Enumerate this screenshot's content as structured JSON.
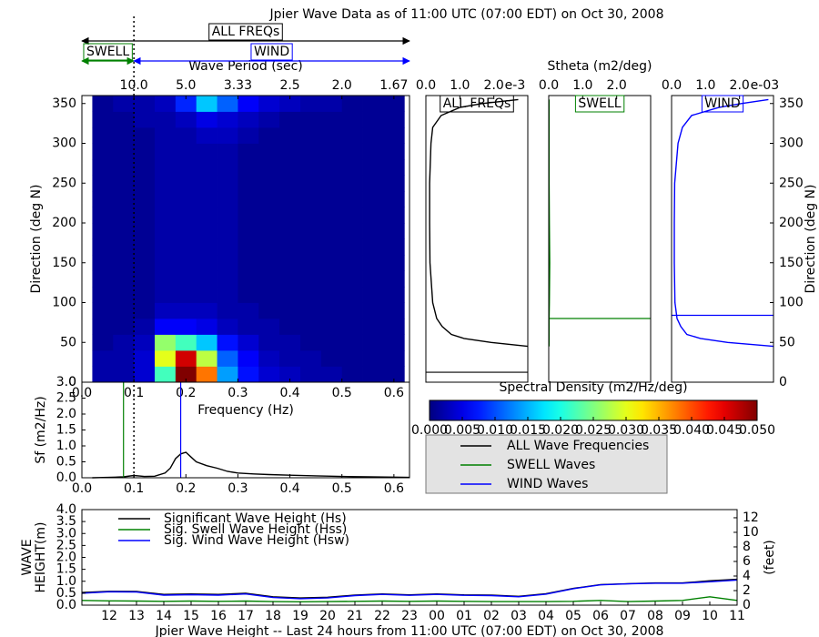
{
  "chart_data": [
    {
      "type": "heatmap",
      "title": "Jpier Wave Data as of 11:00 UTC (07:00 EDT) on Oct 30, 2008",
      "xlabel": "Frequency (Hz)",
      "ylabel": "Direction (deg N)",
      "x2label": "Wave Period (sec)",
      "x_edges": [
        0.02,
        0.06,
        0.1,
        0.14,
        0.18,
        0.22,
        0.26,
        0.3,
        0.34,
        0.38,
        0.42,
        0.46,
        0.5,
        0.54,
        0.58,
        0.62
      ],
      "y_edges": [
        0,
        20,
        40,
        60,
        80,
        100,
        120,
        140,
        160,
        180,
        200,
        220,
        240,
        260,
        280,
        300,
        320,
        340,
        360
      ],
      "values": [
        [
          0.002,
          0.002,
          0.004,
          0.022,
          0.05,
          0.038,
          0.014,
          0.007,
          0.004,
          0.003,
          0.002,
          0.002,
          0.001,
          0.001,
          0.001
        ],
        [
          0.002,
          0.002,
          0.004,
          0.03,
          0.046,
          0.028,
          0.011,
          0.006,
          0.003,
          0.002,
          0.002,
          0.001,
          0.001,
          0.001,
          0.001
        ],
        [
          0.001,
          0.002,
          0.003,
          0.026,
          0.022,
          0.016,
          0.007,
          0.004,
          0.002,
          0.002,
          0.001,
          0.001,
          0.001,
          0.001,
          0.001
        ],
        [
          0.001,
          0.001,
          0.002,
          0.006,
          0.006,
          0.005,
          0.003,
          0.002,
          0.002,
          0.001,
          0.001,
          0.001,
          0.001,
          0.001,
          0.001
        ],
        [
          0.001,
          0.001,
          0.001,
          0.003,
          0.003,
          0.003,
          0.002,
          0.002,
          0.001,
          0.001,
          0.001,
          0.001,
          0.001,
          0.001,
          0.001
        ],
        [
          0.001,
          0.001,
          0.001,
          0.002,
          0.002,
          0.002,
          0.002,
          0.001,
          0.001,
          0.001,
          0.001,
          0.001,
          0.001,
          0.001,
          0.001
        ],
        [
          0.001,
          0.001,
          0.001,
          0.002,
          0.002,
          0.002,
          0.002,
          0.001,
          0.001,
          0.001,
          0.001,
          0.001,
          0.001,
          0.001,
          0.001
        ],
        [
          0.001,
          0.001,
          0.001,
          0.002,
          0.002,
          0.002,
          0.002,
          0.001,
          0.001,
          0.001,
          0.001,
          0.001,
          0.001,
          0.001,
          0.001
        ],
        [
          0.001,
          0.001,
          0.001,
          0.002,
          0.002,
          0.002,
          0.002,
          0.001,
          0.001,
          0.001,
          0.001,
          0.001,
          0.001,
          0.001,
          0.001
        ],
        [
          0.001,
          0.001,
          0.001,
          0.002,
          0.002,
          0.002,
          0.002,
          0.001,
          0.001,
          0.001,
          0.001,
          0.001,
          0.001,
          0.001,
          0.001
        ],
        [
          0.001,
          0.001,
          0.001,
          0.002,
          0.002,
          0.002,
          0.002,
          0.001,
          0.001,
          0.001,
          0.001,
          0.001,
          0.001,
          0.001,
          0.001
        ],
        [
          0.001,
          0.001,
          0.001,
          0.002,
          0.002,
          0.002,
          0.002,
          0.001,
          0.001,
          0.001,
          0.001,
          0.001,
          0.001,
          0.001,
          0.001
        ],
        [
          0.001,
          0.001,
          0.001,
          0.002,
          0.002,
          0.002,
          0.002,
          0.001,
          0.001,
          0.001,
          0.001,
          0.001,
          0.001,
          0.001,
          0.001
        ],
        [
          0.001,
          0.001,
          0.001,
          0.002,
          0.002,
          0.002,
          0.002,
          0.001,
          0.001,
          0.001,
          0.001,
          0.001,
          0.001,
          0.001,
          0.001
        ],
        [
          0.001,
          0.001,
          0.001,
          0.002,
          0.002,
          0.002,
          0.002,
          0.001,
          0.001,
          0.001,
          0.001,
          0.001,
          0.001,
          0.001,
          0.001
        ],
        [
          0.001,
          0.001,
          0.001,
          0.002,
          0.002,
          0.003,
          0.003,
          0.002,
          0.001,
          0.001,
          0.001,
          0.001,
          0.001,
          0.001,
          0.001
        ],
        [
          0.001,
          0.001,
          0.002,
          0.002,
          0.003,
          0.005,
          0.004,
          0.003,
          0.002,
          0.001,
          0.001,
          0.001,
          0.001,
          0.001,
          0.001
        ],
        [
          0.001,
          0.002,
          0.002,
          0.003,
          0.008,
          0.016,
          0.011,
          0.006,
          0.004,
          0.003,
          0.002,
          0.002,
          0.001,
          0.001,
          0.001
        ]
      ],
      "xlim": [
        0,
        0.63
      ],
      "ylim": [
        0,
        360
      ],
      "xticks": [
        {
          "value": 0,
          "label": "0.0"
        },
        {
          "value": 0.1,
          "label": "0.1"
        },
        {
          "value": 0.2,
          "label": "0.2"
        },
        {
          "value": 0.3,
          "label": "0.3"
        },
        {
          "value": 0.4,
          "label": "0.4"
        },
        {
          "value": 0.5,
          "label": "0.5"
        },
        {
          "value": 0.6,
          "label": "0.6"
        }
      ],
      "x2ticks": [
        {
          "value": 0.1,
          "label": "10.0"
        },
        {
          "value": 0.2,
          "label": "5.0"
        },
        {
          "value": 0.3,
          "label": "3.33"
        },
        {
          "value": 0.4,
          "label": "2.5"
        },
        {
          "value": 0.5,
          "label": "2.0"
        },
        {
          "value": 0.6,
          "label": "1.67"
        }
      ],
      "yticks": [
        0,
        50,
        100,
        150,
        200,
        250,
        300,
        350
      ],
      "colormap": "jet",
      "clim": [
        0,
        0.05
      ],
      "colorbar_label": "Spectral Density (m2/Hz/deg)",
      "colorbar_ticks": [
        {
          "value": 0,
          "label": "0.000"
        },
        {
          "value": 0.005,
          "label": "0.005"
        },
        {
          "value": 0.01,
          "label": "0.010"
        },
        {
          "value": 0.015,
          "label": "0.015"
        },
        {
          "value": 0.02,
          "label": "0.020"
        },
        {
          "value": 0.025,
          "label": "0.025"
        },
        {
          "value": 0.03,
          "label": "0.030"
        },
        {
          "value": 0.035,
          "label": "0.035"
        },
        {
          "value": 0.04,
          "label": "0.040"
        },
        {
          "value": 0.045,
          "label": "0.045"
        },
        {
          "value": 0.05,
          "label": "0.050"
        }
      ],
      "separation_frequency": 0.1,
      "band_labels": {
        "all": "ALL FREQs",
        "swell": "SWELL",
        "wind": "WIND"
      },
      "band_colors": {
        "all": "#000000",
        "swell": "#008000",
        "wind": "#0000ff"
      }
    },
    {
      "type": "line",
      "value_axis": "x",
      "title": "ALL FREQs",
      "color": "#000000",
      "y": [
        45,
        50,
        55,
        60,
        70,
        80,
        100,
        150,
        200,
        250,
        300,
        320,
        335,
        345,
        350,
        355
      ],
      "values": [
        0.003,
        0.00192,
        0.00112,
        0.00075,
        0.00048,
        0.00032,
        0.0002,
        0.00012,
        0.00011,
        0.00011,
        0.00015,
        0.0002,
        0.00045,
        0.001,
        0.00165,
        0.00272
      ],
      "mean_direction": 12.5,
      "xlim": [
        0,
        0.003
      ],
      "ylim": [
        0,
        360
      ],
      "xaxis_position": "top",
      "xticks": [
        {
          "value": 0,
          "label": "0.0"
        },
        {
          "value": 0.001,
          "label": "1.0"
        },
        {
          "value": 0.002,
          "label": "2.0"
        }
      ],
      "offset_label": "e-3"
    },
    {
      "type": "line",
      "value_axis": "x",
      "title": "SWELL",
      "color": "#008000",
      "xlabel": "Stheta (m2/deg)",
      "y": [
        45,
        50,
        55,
        60,
        70,
        80,
        100,
        150,
        200,
        250,
        300,
        320,
        335,
        345,
        350,
        355
      ],
      "values": [
        1e-05,
        1e-05,
        1e-05,
        1e-05,
        1e-05,
        1e-05,
        2e-05,
        3e-05,
        2e-05,
        1e-05,
        1e-05,
        1e-05,
        1e-05,
        1e-05,
        1e-05,
        1e-05
      ],
      "mean_direction": 80,
      "xlim": [
        0,
        0.003
      ],
      "ylim": [
        0,
        360
      ],
      "xaxis_position": "top",
      "xticks": [
        {
          "value": 0,
          "label": "0.0"
        },
        {
          "value": 0.001,
          "label": "1.0"
        },
        {
          "value": 0.002,
          "label": "2.0"
        }
      ]
    },
    {
      "type": "line",
      "value_axis": "x",
      "title": "WIND",
      "color": "#0000ff",
      "ylabel": "Direction (deg N)",
      "y": [
        45,
        50,
        55,
        60,
        70,
        80,
        100,
        150,
        200,
        250,
        300,
        320,
        335,
        345,
        350,
        355
      ],
      "values": [
        0.003,
        0.00165,
        0.00085,
        0.00045,
        0.00027,
        0.00016,
        0.0001,
        8e-05,
        8e-05,
        9e-05,
        0.00019,
        0.00032,
        0.00059,
        0.00139,
        0.00205,
        0.00285
      ],
      "mean_direction": 84,
      "xlim": [
        0,
        0.003
      ],
      "ylim": [
        0,
        360
      ],
      "xaxis_position": "top",
      "yaxis_position": "right",
      "xticks": [
        {
          "value": 0,
          "label": "0.0"
        },
        {
          "value": 0.001,
          "label": "1.0"
        },
        {
          "value": 0.002,
          "label": "2.0"
        }
      ],
      "yticks": [
        0,
        50,
        100,
        150,
        200,
        250,
        300,
        350
      ],
      "offset_label": "e-03"
    },
    {
      "type": "line",
      "ylabel": "Sf (m2/Hz)",
      "x": [
        0.02,
        0.05,
        0.08,
        0.1,
        0.12,
        0.14,
        0.16,
        0.17,
        0.18,
        0.19,
        0.2,
        0.21,
        0.22,
        0.24,
        0.26,
        0.28,
        0.3,
        0.33,
        0.36,
        0.4,
        0.45,
        0.5,
        0.55,
        0.6,
        0.63
      ],
      "series": [
        {
          "name": "ALL Wave Frequencies",
          "color": "#000000",
          "values": [
            0,
            0.01,
            0.03,
            0.07,
            0.04,
            0.05,
            0.15,
            0.3,
            0.6,
            0.75,
            0.8,
            0.65,
            0.5,
            0.38,
            0.3,
            0.2,
            0.15,
            0.12,
            0.1,
            0.08,
            0.06,
            0.04,
            0.03,
            0.02,
            0.01
          ]
        }
      ],
      "markers": [
        {
          "name": "SWELL Waves",
          "color": "#008000",
          "frequency": 0.08
        },
        {
          "name": "WIND Waves",
          "color": "#0000ff",
          "frequency": 0.19
        }
      ],
      "xlim": [
        0,
        0.63
      ],
      "ylim": [
        0,
        3
      ],
      "xticks": [
        {
          "value": 0,
          "label": "0.0"
        },
        {
          "value": 0.1,
          "label": "0.1"
        },
        {
          "value": 0.2,
          "label": "0.2"
        },
        {
          "value": 0.3,
          "label": "0.3"
        },
        {
          "value": 0.4,
          "label": "0.4"
        },
        {
          "value": 0.5,
          "label": "0.5"
        },
        {
          "value": 0.6,
          "label": "0.6"
        }
      ],
      "yticks": [
        {
          "value": 0,
          "label": "0.0"
        },
        {
          "value": 0.5,
          "label": "0.5"
        },
        {
          "value": 1,
          "label": "1.0"
        },
        {
          "value": 1.5,
          "label": "1.5"
        },
        {
          "value": 2,
          "label": "2.0"
        },
        {
          "value": 2.5,
          "label": "2.5"
        },
        {
          "value": 3,
          "label": "3.0"
        }
      ],
      "legend": "outside lower right"
    },
    {
      "type": "line",
      "xlabel": "Jpier Wave Height -- Last 24 hours from 11:00 UTC (07:00 EDT) on Oct 30, 2008",
      "ylabel": [
        "WAVE",
        "HEIGHT(m)"
      ],
      "y2label": "(feet)",
      "x": [
        0,
        1,
        2,
        3,
        4,
        5,
        6,
        7,
        8,
        9,
        10,
        11,
        12,
        13,
        14,
        15,
        16,
        17,
        18,
        19,
        20,
        21,
        22,
        23,
        24
      ],
      "series": [
        {
          "name": "Significant Wave Height (Hs)",
          "color": "#000000",
          "values": [
            0.53,
            0.58,
            0.57,
            0.45,
            0.47,
            0.45,
            0.5,
            0.35,
            0.3,
            0.33,
            0.42,
            0.47,
            0.43,
            0.47,
            0.43,
            0.42,
            0.37,
            0.48,
            0.7,
            0.86,
            0.9,
            0.93,
            0.93,
            1.02,
            1.08
          ]
        },
        {
          "name": "Sig. Swell Wave Height (Hss)",
          "color": "#008000",
          "values": [
            0.2,
            0.18,
            0.17,
            0.16,
            0.17,
            0.16,
            0.17,
            0.15,
            0.14,
            0.15,
            0.16,
            0.17,
            0.16,
            0.17,
            0.16,
            0.15,
            0.15,
            0.15,
            0.16,
            0.2,
            0.15,
            0.17,
            0.2,
            0.35,
            0.2
          ]
        },
        {
          "name": "Sig. Wind Wave Height (Hsw)",
          "color": "#0000ff",
          "values": [
            0.5,
            0.56,
            0.55,
            0.42,
            0.44,
            0.42,
            0.47,
            0.32,
            0.27,
            0.3,
            0.4,
            0.45,
            0.41,
            0.45,
            0.41,
            0.4,
            0.35,
            0.46,
            0.69,
            0.85,
            0.89,
            0.92,
            0.92,
            0.98,
            1.05
          ]
        }
      ],
      "xlim": [
        0,
        24
      ],
      "ylim": [
        0,
        4
      ],
      "y2lim": [
        0,
        13.12
      ],
      "xticks": [
        {
          "value": 1,
          "label": "12"
        },
        {
          "value": 2,
          "label": "13"
        },
        {
          "value": 3,
          "label": "14"
        },
        {
          "value": 4,
          "label": "15"
        },
        {
          "value": 5,
          "label": "16"
        },
        {
          "value": 6,
          "label": "17"
        },
        {
          "value": 7,
          "label": "18"
        },
        {
          "value": 8,
          "label": "19"
        },
        {
          "value": 9,
          "label": "20"
        },
        {
          "value": 10,
          "label": "21"
        },
        {
          "value": 11,
          "label": "22"
        },
        {
          "value": 12,
          "label": "23"
        },
        {
          "value": 13,
          "label": "00"
        },
        {
          "value": 14,
          "label": "01"
        },
        {
          "value": 15,
          "label": "02"
        },
        {
          "value": 16,
          "label": "03"
        },
        {
          "value": 17,
          "label": "04"
        },
        {
          "value": 18,
          "label": "05"
        },
        {
          "value": 19,
          "label": "06"
        },
        {
          "value": 20,
          "label": "07"
        },
        {
          "value": 21,
          "label": "08"
        },
        {
          "value": 22,
          "label": "09"
        },
        {
          "value": 23,
          "label": "10"
        },
        {
          "value": 24,
          "label": "11"
        }
      ],
      "yticks": [
        {
          "value": 0,
          "label": "0.0"
        },
        {
          "value": 0.5,
          "label": "0.5"
        },
        {
          "value": 1,
          "label": "1.0"
        },
        {
          "value": 1.5,
          "label": "1.5"
        },
        {
          "value": 2,
          "label": "2.0"
        },
        {
          "value": 2.5,
          "label": "2.5"
        },
        {
          "value": 3,
          "label": "3.0"
        },
        {
          "value": 3.5,
          "label": "3.5"
        },
        {
          "value": 4,
          "label": "4.0"
        }
      ],
      "y2ticks": [
        0,
        2,
        4,
        6,
        8,
        10,
        12
      ],
      "legend": "upper left"
    }
  ]
}
